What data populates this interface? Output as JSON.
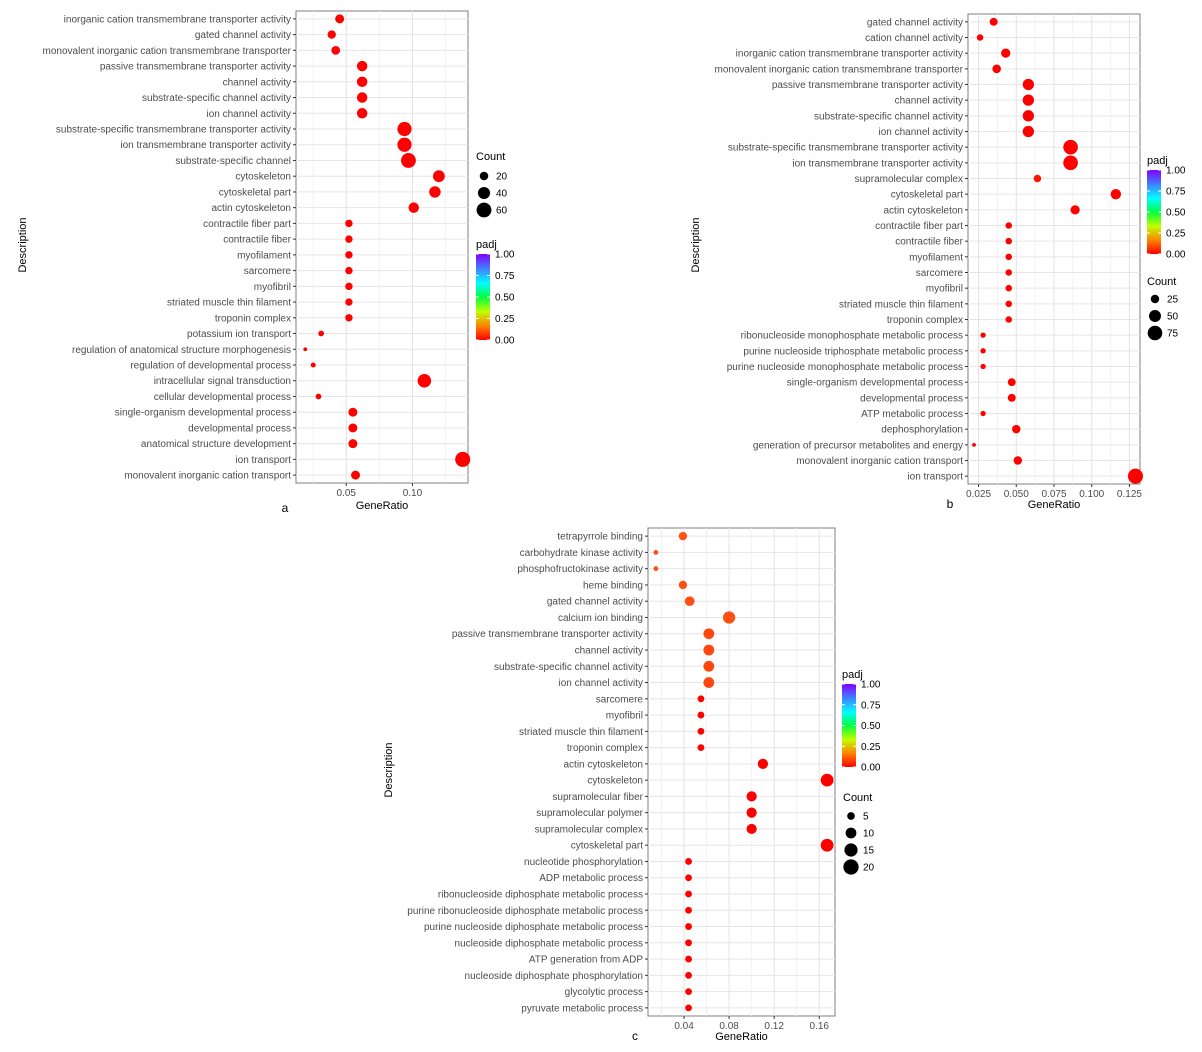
{
  "chart_data": [
    {
      "panel_label": "a",
      "type": "scatter",
      "xlabel": "GeneRatio",
      "ylabel": "Description",
      "xlim": [
        0.012,
        0.142
      ],
      "xticks": [
        0.05,
        0.1
      ],
      "xtick_labels": [
        "0.05",
        "0.10"
      ],
      "padj_title": "padj",
      "padj_ticks": [
        "1.00",
        "0.75",
        "0.50",
        "0.25",
        "0.00"
      ],
      "count_title": "Count",
      "count_legend": [
        20,
        40,
        60
      ],
      "count_range": [
        2,
        70
      ],
      "terms": [
        {
          "label": "inorganic cation transmembrane transporter activity",
          "x": 0.045,
          "count": 22,
          "padj": 0.0
        },
        {
          "label": "gated channel activity",
          "x": 0.039,
          "count": 19,
          "padj": 0.0
        },
        {
          "label": "monovalent inorganic cation transmembrane transporter",
          "x": 0.042,
          "count": 21,
          "padj": 0.0
        },
        {
          "label": "passive transmembrane transporter activity",
          "x": 0.062,
          "count": 30,
          "padj": 0.0
        },
        {
          "label": "channel activity",
          "x": 0.062,
          "count": 30,
          "padj": 0.0
        },
        {
          "label": "substrate-specific channel activity",
          "x": 0.062,
          "count": 30,
          "padj": 0.0
        },
        {
          "label": "ion channel activity",
          "x": 0.062,
          "count": 30,
          "padj": 0.0
        },
        {
          "label": "substrate-specific transmembrane transporter activity",
          "x": 0.094,
          "count": 55,
          "padj": 0.0
        },
        {
          "label": "ion transmembrane transporter activity",
          "x": 0.094,
          "count": 55,
          "padj": 0.0
        },
        {
          "label": "substrate-specific channel",
          "x": 0.097,
          "count": 60,
          "padj": 0.0
        },
        {
          "label": "cytoskeleton",
          "x": 0.12,
          "count": 38,
          "padj": 0.0
        },
        {
          "label": "cytoskeletal part",
          "x": 0.117,
          "count": 36,
          "padj": 0.0
        },
        {
          "label": "actin cytoskeleton",
          "x": 0.101,
          "count": 30,
          "padj": 0.0
        },
        {
          "label": "contractile fiber part",
          "x": 0.052,
          "count": 15,
          "padj": 0.0
        },
        {
          "label": "contractile fiber",
          "x": 0.052,
          "count": 15,
          "padj": 0.0
        },
        {
          "label": "myofilament",
          "x": 0.052,
          "count": 15,
          "padj": 0.0
        },
        {
          "label": "sarcomere",
          "x": 0.052,
          "count": 15,
          "padj": 0.0
        },
        {
          "label": "myofibril",
          "x": 0.052,
          "count": 15,
          "padj": 0.0
        },
        {
          "label": "striated muscle thin filament",
          "x": 0.052,
          "count": 15,
          "padj": 0.0
        },
        {
          "label": "troponin complex",
          "x": 0.052,
          "count": 15,
          "padj": 0.0
        },
        {
          "label": "potassium ion transport",
          "x": 0.031,
          "count": 9,
          "padj": 0.0
        },
        {
          "label": "regulation of anatomical structure morphogenesis",
          "x": 0.019,
          "count": 4,
          "padj": 0.0
        },
        {
          "label": "regulation of developmental process",
          "x": 0.025,
          "count": 7,
          "padj": 0.0
        },
        {
          "label": "intracellular signal transduction",
          "x": 0.109,
          "count": 50,
          "padj": 0.0
        },
        {
          "label": "cellular developmental process",
          "x": 0.029,
          "count": 9,
          "padj": 0.0
        },
        {
          "label": "single-organism developmental process",
          "x": 0.055,
          "count": 22,
          "padj": 0.0
        },
        {
          "label": "developmental process",
          "x": 0.055,
          "count": 22,
          "padj": 0.0
        },
        {
          "label": "anatomical structure development",
          "x": 0.055,
          "count": 22,
          "padj": 0.0
        },
        {
          "label": "ion transport",
          "x": 0.138,
          "count": 62,
          "padj": 0.0
        },
        {
          "label": "monovalent inorganic cation transport",
          "x": 0.057,
          "count": 22,
          "padj": 0.0
        }
      ]
    },
    {
      "panel_label": "b",
      "type": "scatter",
      "xlabel": "GeneRatio",
      "ylabel": "Description",
      "xlim": [
        0.018,
        0.132
      ],
      "xticks": [
        0.025,
        0.05,
        0.075,
        0.1,
        0.125
      ],
      "xtick_labels": [
        "0.025",
        "0.050",
        "0.075",
        "0.100",
        "0.125"
      ],
      "padj_title": "padj",
      "padj_ticks": [
        "1.00",
        "0.75",
        "0.50",
        "0.25",
        "0.00"
      ],
      "count_title": "Count",
      "count_legend": [
        25,
        50,
        75
      ],
      "count_range": [
        2,
        90
      ],
      "terms": [
        {
          "label": "gated channel activity",
          "x": 0.035,
          "count": 22,
          "padj": 0.0
        },
        {
          "label": "cation channel activity",
          "x": 0.026,
          "count": 15,
          "padj": 0.0
        },
        {
          "label": "inorganic cation transmembrane transporter activity",
          "x": 0.043,
          "count": 30,
          "padj": 0.0
        },
        {
          "label": "monovalent inorganic cation transmembrane transporter",
          "x": 0.037,
          "count": 26,
          "padj": 0.0
        },
        {
          "label": "passive transmembrane transporter activity",
          "x": 0.058,
          "count": 45,
          "padj": 0.0
        },
        {
          "label": "channel activity",
          "x": 0.058,
          "count": 45,
          "padj": 0.0
        },
        {
          "label": "substrate-specific channel activity",
          "x": 0.058,
          "count": 45,
          "padj": 0.0
        },
        {
          "label": "ion channel activity",
          "x": 0.058,
          "count": 45,
          "padj": 0.0
        },
        {
          "label": "substrate-specific transmembrane transporter activity",
          "x": 0.086,
          "count": 75,
          "padj": 0.0
        },
        {
          "label": "ion transmembrane transporter activity",
          "x": 0.086,
          "count": 75,
          "padj": 0.0
        },
        {
          "label": "supramolecular complex",
          "x": 0.064,
          "count": 20,
          "padj": 0.02
        },
        {
          "label": "cytoskeletal part",
          "x": 0.116,
          "count": 38,
          "padj": 0.0
        },
        {
          "label": "actin cytoskeleton",
          "x": 0.089,
          "count": 30,
          "padj": 0.0
        },
        {
          "label": "contractile fiber part",
          "x": 0.045,
          "count": 15,
          "padj": 0.0
        },
        {
          "label": "contractile fiber",
          "x": 0.045,
          "count": 15,
          "padj": 0.0
        },
        {
          "label": "myofilament",
          "x": 0.045,
          "count": 15,
          "padj": 0.0
        },
        {
          "label": "sarcomere",
          "x": 0.045,
          "count": 15,
          "padj": 0.0
        },
        {
          "label": "myofibril",
          "x": 0.045,
          "count": 15,
          "padj": 0.0
        },
        {
          "label": "striated muscle thin filament",
          "x": 0.045,
          "count": 15,
          "padj": 0.0
        },
        {
          "label": "troponin complex",
          "x": 0.045,
          "count": 15,
          "padj": 0.0
        },
        {
          "label": "ribonucleoside monophosphate metabolic process",
          "x": 0.028,
          "count": 10,
          "padj": 0.0
        },
        {
          "label": "purine nucleoside triphosphate metabolic process",
          "x": 0.028,
          "count": 10,
          "padj": 0.0
        },
        {
          "label": "purine nucleoside monophosphate metabolic process",
          "x": 0.028,
          "count": 10,
          "padj": 0.0
        },
        {
          "label": "single-organism developmental process",
          "x": 0.047,
          "count": 22,
          "padj": 0.0
        },
        {
          "label": "developmental process",
          "x": 0.047,
          "count": 22,
          "padj": 0.0
        },
        {
          "label": "ATP metabolic process",
          "x": 0.028,
          "count": 10,
          "padj": 0.0
        },
        {
          "label": "dephosphorylation",
          "x": 0.05,
          "count": 25,
          "padj": 0.0
        },
        {
          "label": "generation of precursor metabolites and energy",
          "x": 0.022,
          "count": 5,
          "padj": 0.0
        },
        {
          "label": "monovalent inorganic cation transport",
          "x": 0.051,
          "count": 25,
          "padj": 0.0
        },
        {
          "label": "ion transport",
          "x": 0.129,
          "count": 80,
          "padj": 0.0
        }
      ]
    },
    {
      "panel_label": "c",
      "type": "scatter",
      "xlabel": "GeneRatio",
      "ylabel": "Description",
      "xlim": [
        0.008,
        0.174
      ],
      "xticks": [
        0.04,
        0.08,
        0.12,
        0.16
      ],
      "xtick_labels": [
        "0.04",
        "0.08",
        "0.12",
        "0.16"
      ],
      "padj_title": "padj",
      "padj_ticks": [
        "1.00",
        "0.75",
        "0.50",
        "0.25",
        "0.00"
      ],
      "count_title": "Count",
      "count_legend": [
        5,
        10,
        15,
        20
      ],
      "count_range": [
        1,
        22
      ],
      "terms": [
        {
          "label": "tetrapyrrole binding",
          "x": 0.039,
          "count": 6,
          "padj": 0.08
        },
        {
          "label": "carbohydrate kinase activity",
          "x": 0.015,
          "count": 2,
          "padj": 0.08
        },
        {
          "label": "phosphofructokinase activity",
          "x": 0.015,
          "count": 2,
          "padj": 0.08
        },
        {
          "label": "heme binding",
          "x": 0.039,
          "count": 6,
          "padj": 0.08
        },
        {
          "label": "gated channel activity",
          "x": 0.045,
          "count": 8,
          "padj": 0.08
        },
        {
          "label": "calcium ion binding",
          "x": 0.08,
          "count": 13,
          "padj": 0.08
        },
        {
          "label": "passive transmembrane transporter activity",
          "x": 0.062,
          "count": 10,
          "padj": 0.07
        },
        {
          "label": "channel activity",
          "x": 0.062,
          "count": 10,
          "padj": 0.07
        },
        {
          "label": "substrate-specific channel activity",
          "x": 0.062,
          "count": 10,
          "padj": 0.07
        },
        {
          "label": "ion channel activity",
          "x": 0.062,
          "count": 10,
          "padj": 0.07
        },
        {
          "label": "sarcomere",
          "x": 0.055,
          "count": 4,
          "padj": 0.0
        },
        {
          "label": "myofibril",
          "x": 0.055,
          "count": 4,
          "padj": 0.0
        },
        {
          "label": "striated muscle thin filament",
          "x": 0.055,
          "count": 4,
          "padj": 0.0
        },
        {
          "label": "troponin complex",
          "x": 0.055,
          "count": 4,
          "padj": 0.0
        },
        {
          "label": "actin cytoskeleton",
          "x": 0.11,
          "count": 9,
          "padj": 0.0
        },
        {
          "label": "cytoskeleton",
          "x": 0.167,
          "count": 14,
          "padj": 0.0
        },
        {
          "label": "supramolecular fiber",
          "x": 0.1,
          "count": 9,
          "padj": 0.0
        },
        {
          "label": "supramolecular polymer",
          "x": 0.1,
          "count": 9,
          "padj": 0.0
        },
        {
          "label": "supramolecular complex",
          "x": 0.1,
          "count": 9,
          "padj": 0.0
        },
        {
          "label": "cytoskeletal part",
          "x": 0.167,
          "count": 14,
          "padj": 0.0
        },
        {
          "label": "nucleotide phosphorylation",
          "x": 0.044,
          "count": 4,
          "padj": 0.0
        },
        {
          "label": "ADP metabolic process",
          "x": 0.044,
          "count": 4,
          "padj": 0.0
        },
        {
          "label": "ribonucleoside diphosphate metabolic process",
          "x": 0.044,
          "count": 4,
          "padj": 0.0
        },
        {
          "label": "purine ribonucleoside diphosphate metabolic process",
          "x": 0.044,
          "count": 4,
          "padj": 0.0
        },
        {
          "label": "purine nucleoside diphosphate metabolic process",
          "x": 0.044,
          "count": 4,
          "padj": 0.0
        },
        {
          "label": "nucleoside diphosphate metabolic process",
          "x": 0.044,
          "count": 4,
          "padj": 0.0
        },
        {
          "label": "ATP generation from ADP",
          "x": 0.044,
          "count": 4,
          "padj": 0.0
        },
        {
          "label": "nucleoside diphosphate phosphorylation",
          "x": 0.044,
          "count": 4,
          "padj": 0.0
        },
        {
          "label": "glycolytic process",
          "x": 0.044,
          "count": 4,
          "padj": 0.0
        },
        {
          "label": "pyruvate metabolic process",
          "x": 0.044,
          "count": 4,
          "padj": 0.0
        }
      ]
    }
  ]
}
